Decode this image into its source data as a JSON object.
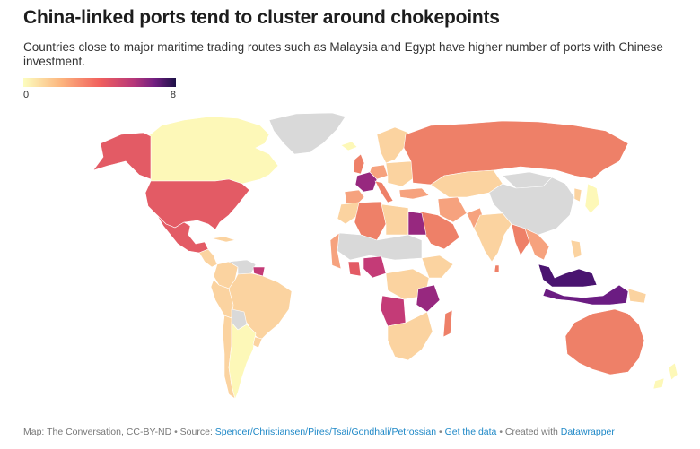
{
  "title": "China-linked ports tend to cluster around chokepoints",
  "subtitle": "Countries close to major maritime trading routes such as Malaysia and Egypt have higher number of ports with Chinese investment.",
  "legend": {
    "min_label": "0",
    "max_label": "8",
    "colors": [
      "#fcfdbf",
      "#fcb47d",
      "#f1605d",
      "#b73779",
      "#721f81",
      "#1d1147"
    ]
  },
  "map_colors": {
    "no_data": "#d9d9d9",
    "v0": "#fdf8b8",
    "v1": "#fbd3a0",
    "v2": "#f6a27e",
    "v3": "#ee8068",
    "v4": "#e35b65",
    "v5": "#c43b77",
    "v6": "#97287f",
    "v7": "#6b1c82",
    "v8": "#4a1470"
  },
  "footer": {
    "credit": "Map: The Conversation, CC-BY-ND",
    "source_label": "Source:",
    "source_link": "Spencer/Christiansen/Pires/Tsai/Gondhali/Petrossian",
    "data_link": "Get the data",
    "created_label": "Created with",
    "tool_link": "Datawrapper"
  }
}
